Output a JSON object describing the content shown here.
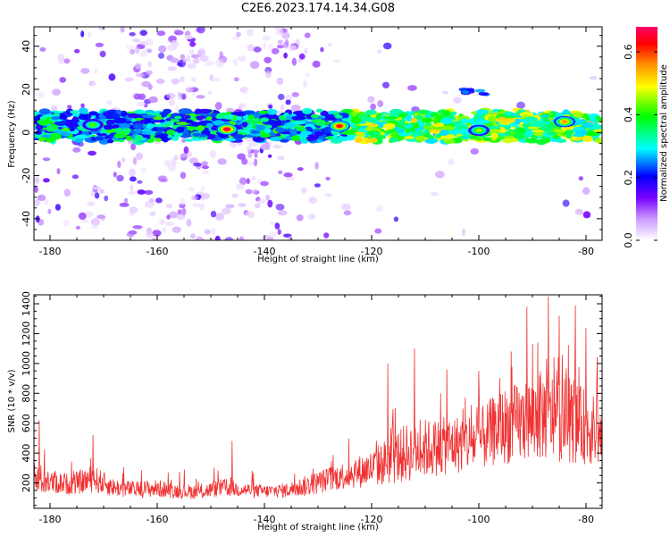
{
  "title": "C2E6.2023.174.14.34.G08",
  "chart_data": [
    {
      "type": "heatmap",
      "xlabel": "Height of straight line (km)",
      "ylabel": "Frequency (Hz)",
      "xlim": [
        -183,
        -77
      ],
      "ylim": [
        -50,
        49
      ],
      "xticks": [
        -180,
        -160,
        -140,
        -120,
        -100,
        -80
      ],
      "xtick_labels": [
        "-180",
        "-160",
        "-140",
        "-120",
        "-100",
        "-80"
      ],
      "yticks": [
        -40,
        -20,
        0,
        20,
        40
      ],
      "ytick_labels": [
        "-40",
        "-20",
        "0",
        "20",
        "40"
      ],
      "colorbar": {
        "label": "Normalized spectral amplitude",
        "range": [
          0,
          0.68
        ],
        "ticks": [
          0.0,
          0.2,
          0.4,
          0.6
        ],
        "tick_labels": [
          "0.0",
          "0.2",
          "0.4",
          "0.6"
        ],
        "colormap": [
          "#ffffff",
          "#7700ff",
          "#0000ff",
          "#00ffff",
          "#00ff00",
          "#ffff00",
          "#ff8800",
          "#ff0000",
          "#ff0066"
        ]
      },
      "band": {
        "center_frequency": 3,
        "x_start": -183,
        "x_end": -77
      },
      "hotspots": [
        {
          "x": -147,
          "y": 1.5,
          "value": 0.65
        },
        {
          "x": -126,
          "y": 3,
          "value": 0.62
        },
        {
          "x": -84,
          "y": 5,
          "value": 0.55
        },
        {
          "x": -172,
          "y": 3.5,
          "value": 0.42
        },
        {
          "x": -100,
          "y": 1,
          "value": 0.45
        }
      ]
    },
    {
      "type": "line",
      "xlabel": "Height of straight line (km)",
      "ylabel": "SNR (10 * v/v)",
      "xlim": [
        -183,
        -77
      ],
      "ylim": [
        30,
        1460
      ],
      "xticks": [
        -180,
        -160,
        -140,
        -120,
        -100,
        -80
      ],
      "xtick_labels": [
        "-180",
        "-160",
        "-140",
        "-120",
        "-100",
        "-80"
      ],
      "yticks": [
        200,
        400,
        600,
        800,
        1000,
        1200,
        1400
      ],
      "ytick_labels": [
        "200",
        "400",
        "600",
        "800",
        "1000",
        "1200",
        "1400"
      ],
      "color": "#f03232",
      "envelope": {
        "x": [
          -183,
          -180,
          -176,
          -172,
          -168,
          -164,
          -160,
          -156,
          -152,
          -148,
          -144,
          -140,
          -136,
          -132,
          -128,
          -124,
          -120,
          -116,
          -112,
          -108,
          -104,
          -100,
          -96,
          -92,
          -88,
          -84,
          -80,
          -77
        ],
        "mean": [
          200,
          180,
          170,
          200,
          150,
          140,
          145,
          130,
          125,
          150,
          140,
          130,
          135,
          160,
          200,
          230,
          260,
          310,
          360,
          380,
          400,
          420,
          500,
          520,
          560,
          540,
          500,
          450
        ],
        "spread": [
          220,
          140,
          130,
          170,
          110,
          100,
          110,
          90,
          90,
          110,
          90,
          80,
          90,
          130,
          150,
          180,
          230,
          320,
          380,
          350,
          360,
          380,
          460,
          500,
          560,
          520,
          460,
          400
        ]
      },
      "peaks": [
        {
          "x": -182,
          "y": 620
        },
        {
          "x": -172,
          "y": 520
        },
        {
          "x": -146,
          "y": 480
        },
        {
          "x": -117,
          "y": 1000
        },
        {
          "x": -112,
          "y": 1100
        },
        {
          "x": -106,
          "y": 960
        },
        {
          "x": -100,
          "y": 950
        },
        {
          "x": -94,
          "y": 1080
        },
        {
          "x": -91,
          "y": 1380
        },
        {
          "x": -89,
          "y": 1140
        },
        {
          "x": -87,
          "y": 1450
        },
        {
          "x": -85,
          "y": 1320
        },
        {
          "x": -82,
          "y": 1390
        },
        {
          "x": -80,
          "y": 1240
        },
        {
          "x": -78,
          "y": 900
        }
      ]
    }
  ]
}
